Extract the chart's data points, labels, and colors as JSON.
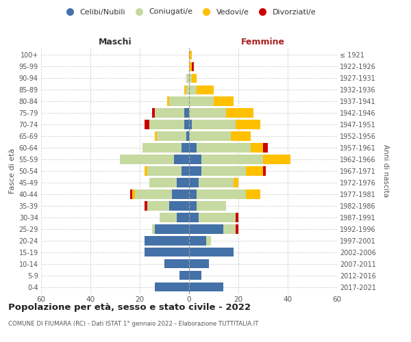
{
  "age_groups": [
    "0-4",
    "5-9",
    "10-14",
    "15-19",
    "20-24",
    "25-29",
    "30-34",
    "35-39",
    "40-44",
    "45-49",
    "50-54",
    "55-59",
    "60-64",
    "65-69",
    "70-74",
    "75-79",
    "80-84",
    "85-89",
    "90-94",
    "95-99",
    "100+"
  ],
  "birth_years": [
    "2017-2021",
    "2012-2016",
    "2007-2011",
    "2002-2006",
    "1997-2001",
    "1992-1996",
    "1987-1991",
    "1982-1986",
    "1977-1981",
    "1972-1976",
    "1967-1971",
    "1962-1966",
    "1957-1961",
    "1952-1956",
    "1947-1951",
    "1942-1946",
    "1937-1941",
    "1932-1936",
    "1927-1931",
    "1922-1926",
    "≤ 1921"
  ],
  "male": {
    "celibi": [
      14,
      4,
      10,
      18,
      18,
      14,
      5,
      8,
      7,
      5,
      3,
      6,
      3,
      1,
      2,
      2,
      0,
      0,
      0,
      0,
      0
    ],
    "coniugati": [
      0,
      0,
      0,
      0,
      0,
      1,
      7,
      9,
      15,
      11,
      14,
      22,
      16,
      12,
      14,
      12,
      8,
      1,
      1,
      0,
      0
    ],
    "vedovi": [
      0,
      0,
      0,
      0,
      0,
      0,
      0,
      0,
      1,
      0,
      1,
      0,
      0,
      1,
      0,
      0,
      1,
      1,
      0,
      0,
      0
    ],
    "divorziati": [
      0,
      0,
      0,
      0,
      0,
      0,
      0,
      1,
      1,
      0,
      0,
      0,
      0,
      0,
      2,
      1,
      0,
      0,
      0,
      0,
      0
    ]
  },
  "female": {
    "nubili": [
      14,
      5,
      8,
      18,
      7,
      14,
      4,
      3,
      3,
      4,
      5,
      5,
      3,
      0,
      1,
      0,
      0,
      0,
      0,
      0,
      0
    ],
    "coniugate": [
      0,
      0,
      0,
      0,
      2,
      5,
      15,
      12,
      20,
      14,
      18,
      25,
      22,
      17,
      18,
      15,
      10,
      3,
      1,
      0,
      0
    ],
    "vedove": [
      0,
      0,
      0,
      0,
      0,
      0,
      0,
      0,
      6,
      2,
      7,
      11,
      5,
      8,
      10,
      11,
      8,
      7,
      2,
      1,
      1
    ],
    "divorziate": [
      0,
      0,
      0,
      0,
      0,
      1,
      1,
      0,
      0,
      0,
      1,
      0,
      2,
      0,
      0,
      0,
      0,
      0,
      0,
      1,
      0
    ]
  },
  "colors": {
    "celibi": "#4472a8",
    "coniugati": "#c6d9a0",
    "vedovi": "#ffc000",
    "divorziati": "#cc0000"
  },
  "title": "Popolazione per età, sesso e stato civile - 2022",
  "subtitle": "COMUNE DI FIUMARA (RC) - Dati ISTAT 1° gennaio 2022 - Elaborazione TUTTITALIA.IT",
  "xlabel_left": "Maschi",
  "xlabel_right": "Femmine",
  "ylabel_left": "Fasce di età",
  "ylabel_right": "Anni di nascita",
  "xlim": 60,
  "background_color": "#ffffff",
  "grid_color": "#cccccc",
  "legend_labels": [
    "Celibi/Nubili",
    "Coniugati/e",
    "Vedovi/e",
    "Divorziati/e"
  ]
}
